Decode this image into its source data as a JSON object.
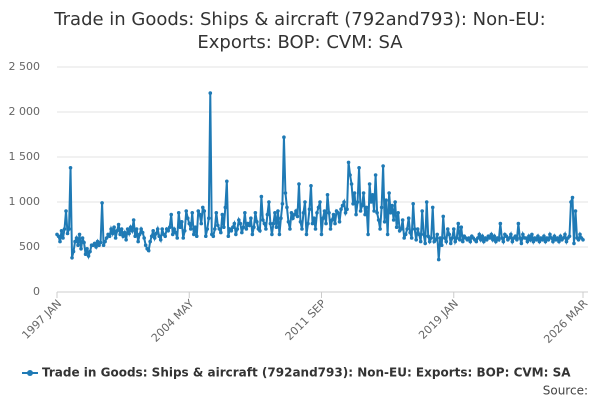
{
  "chart_data": {
    "type": "line",
    "title": "Trade in Goods: Ships & aircraft (792and793): Non-EU: Exports: BOP: CVM: SA",
    "source": "Source:",
    "categories": [
      "1997 JAN",
      null,
      null,
      null,
      null,
      null,
      null,
      null,
      null,
      null,
      null,
      null,
      null,
      null,
      null,
      null,
      null,
      null,
      null,
      null,
      null,
      null,
      null,
      null,
      null,
      null,
      null,
      null,
      null,
      null,
      null,
      null,
      null,
      null,
      null,
      null,
      null,
      null,
      null,
      null,
      null,
      null,
      null,
      null,
      null,
      null,
      null,
      null,
      null,
      null,
      null,
      null,
      null,
      null,
      null,
      null,
      null,
      null,
      null,
      null,
      null,
      null,
      null,
      null,
      null,
      null,
      null,
      null,
      null,
      null,
      null,
      null,
      null,
      null,
      null,
      null,
      null,
      null,
      null,
      null,
      null,
      null,
      null,
      null,
      null,
      null,
      null,
      null,
      "2004 MAY",
      null,
      null,
      null,
      null,
      null,
      null,
      null,
      null,
      null,
      null,
      null,
      null,
      null,
      null,
      null,
      null,
      null,
      null,
      null,
      null,
      null,
      null,
      null,
      null,
      null,
      null,
      null,
      null,
      null,
      null,
      null,
      null,
      null,
      null,
      null,
      null,
      null,
      null,
      null,
      null,
      null,
      null,
      null,
      null,
      null,
      null,
      null,
      null,
      null,
      null,
      null,
      null,
      null,
      null,
      null,
      null,
      null,
      null,
      null,
      null,
      null,
      null,
      null,
      null,
      null,
      null,
      null,
      null,
      null,
      null,
      null,
      null,
      null,
      null,
      null,
      null,
      null,
      null,
      null,
      null,
      null,
      null,
      null,
      null,
      null,
      null,
      null,
      "2011 SEP",
      null,
      null,
      null,
      null,
      null,
      null,
      null,
      null,
      null,
      null,
      null,
      null,
      null,
      null,
      null,
      null,
      null,
      null,
      null,
      null,
      null,
      null,
      null,
      null,
      null,
      null,
      null,
      null,
      null,
      null,
      null,
      null,
      null,
      null,
      null,
      null,
      null,
      null,
      null,
      null,
      null,
      null,
      null,
      null,
      null,
      null,
      null,
      null,
      null,
      null,
      null,
      null,
      null,
      null,
      null,
      null,
      null,
      null,
      null,
      null,
      null,
      null,
      null,
      null,
      null,
      null,
      null,
      null,
      null,
      null,
      null,
      null,
      null,
      null,
      null,
      null,
      null,
      null,
      null,
      null,
      null,
      null,
      null,
      null,
      null,
      null,
      null,
      "2019 JAN",
      null,
      null,
      null,
      null,
      null,
      null,
      null,
      null,
      null,
      null,
      null,
      null,
      null,
      null,
      null,
      null,
      null,
      null,
      null,
      null,
      null,
      null,
      null,
      null,
      null,
      null,
      null,
      null,
      null,
      null,
      null,
      null,
      null,
      null,
      null,
      null,
      null,
      null,
      null,
      null,
      null,
      null,
      null,
      null,
      null,
      null,
      null,
      null,
      null,
      null,
      null,
      null,
      null,
      null,
      null,
      null,
      null,
      null,
      null,
      null,
      null,
      null,
      null,
      null,
      null,
      null,
      null,
      null,
      null,
      null,
      null,
      null,
      null,
      null,
      null,
      null,
      null,
      null,
      null,
      null,
      null,
      null,
      null,
      null,
      null,
      "2026 MAR"
    ],
    "series": [
      {
        "name": "Trade in Goods: Ships & aircraft (792and793): Non-EU: Exports: BOP: CVM: SA",
        "color": "#1f7ab5",
        "values": [
          640,
          620,
          560,
          680,
          600,
          700,
          900,
          650,
          700,
          1380,
          380,
          450,
          560,
          600,
          520,
          640,
          480,
          600,
          550,
          420,
          480,
          400,
          450,
          520,
          520,
          540,
          500,
          560,
          520,
          550,
          990,
          520,
          560,
          600,
          640,
          620,
          700,
          650,
          720,
          600,
          680,
          750,
          640,
          700,
          620,
          660,
          580,
          700,
          650,
          720,
          680,
          800,
          620,
          700,
          560,
          640,
          700,
          660,
          600,
          520,
          480,
          460,
          560,
          620,
          680,
          600,
          650,
          700,
          620,
          580,
          700,
          640,
          620,
          700,
          680,
          720,
          860,
          640,
          700,
          660,
          600,
          880,
          720,
          780,
          600,
          680,
          900,
          820,
          760,
          700,
          880,
          640,
          720,
          620,
          900,
          860,
          760,
          940,
          900,
          620,
          700,
          820,
          2210,
          640,
          620,
          700,
          880,
          740,
          700,
          660,
          860,
          720,
          940,
          1230,
          620,
          700,
          680,
          720,
          760,
          640,
          700,
          800,
          760,
          660,
          720,
          880,
          700,
          760,
          740,
          820,
          640,
          720,
          880,
          780,
          700,
          680,
          1060,
          800,
          760,
          700,
          860,
          1000,
          760,
          640,
          760,
          880,
          720,
          900,
          640,
          820,
          980,
          1720,
          1100,
          940,
          780,
          700,
          880,
          820,
          860,
          900,
          840,
          1200,
          780,
          700,
          880,
          1000,
          640,
          760,
          920,
          1180,
          760,
          820,
          700,
          880,
          940,
          1000,
          640,
          820,
          900,
          760,
          1080,
          880,
          700,
          800,
          860,
          760,
          900,
          880,
          780,
          920,
          960,
          1000,
          880,
          920,
          1440,
          1300,
          1200,
          980,
          1100,
          860,
          1000,
          1380,
          900,
          960,
          1100,
          860,
          940,
          640,
          1200,
          1000,
          1080,
          900,
          1300,
          880,
          800,
          700,
          940,
          1400,
          780,
          1020,
          640,
          1100,
          880,
          960,
          800,
          1000,
          720,
          880,
          680,
          700,
          800,
          600,
          640,
          700,
          820,
          660,
          600,
          980,
          700,
          580,
          700,
          640,
          560,
          900,
          640,
          540,
          1000,
          620,
          560,
          600,
          940,
          560,
          580,
          640,
          360,
          600,
          520,
          840,
          600,
          560,
          700,
          640,
          540,
          600,
          700,
          560,
          600,
          760,
          580,
          720,
          560,
          620,
          600,
          580,
          600,
          560,
          620,
          600,
          580,
          560,
          600,
          640,
          580,
          620,
          560,
          600,
          580,
          620,
          600,
          640,
          580,
          620,
          560,
          600,
          580,
          760,
          600,
          560,
          640,
          620,
          580,
          600,
          640,
          560,
          600,
          620,
          580,
          760,
          600,
          540,
          640,
          600,
          600,
          560,
          620,
          580,
          640,
          560,
          600,
          580,
          620,
          560,
          600,
          580,
          620,
          560,
          600,
          580,
          640,
          600,
          560,
          620,
          580,
          600,
          560,
          620,
          580,
          600,
          640,
          560,
          600,
          620,
          1000,
          1050,
          540,
          900,
          600,
          580,
          640,
          600,
          580
        ]
      }
    ],
    "ylim": [
      0,
      2500
    ],
    "yticks": [
      0,
      500,
      {
        "value": 1000,
        "label": "1 000"
      },
      {
        "value": 1500,
        "label": "1 500"
      },
      {
        "value": 2000,
        "label": "2 000"
      },
      {
        "value": 2500,
        "label": "2 500"
      }
    ],
    "grid": true
  }
}
